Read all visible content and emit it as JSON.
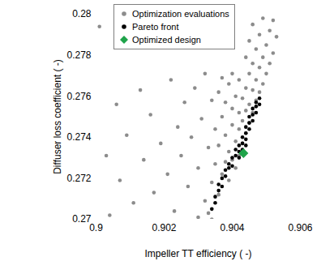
{
  "chart_data": {
    "type": "scatter",
    "xlabel": "Impeller TT efficiency ( -)",
    "ylabel": "Diffuser loss coefficient ( -)",
    "xlim": [
      0.9,
      0.906
    ],
    "xticks": [
      0.9,
      0.902,
      0.904,
      0.906
    ],
    "ylim": [
      0.27,
      0.28
    ],
    "yticks": [
      0.27,
      0.272,
      0.274,
      0.276,
      0.278,
      0.28
    ],
    "grid": false,
    "legend": "top-left",
    "series": [
      {
        "name": "Optimization evaluations",
        "color": "#8c8c8c",
        "marker": "circle",
        "x": [
          0.9001,
          0.9003,
          0.9004,
          0.9006,
          0.9007,
          0.9009,
          0.9011,
          0.9013,
          0.9014,
          0.9016,
          0.9017,
          0.9019,
          0.9021,
          0.9022,
          0.9023,
          0.9024,
          0.9025,
          0.9026,
          0.9027,
          0.9028,
          0.9029,
          0.903,
          0.9031,
          0.9032,
          0.9032,
          0.9033,
          0.9034,
          0.903,
          0.9033,
          0.9034,
          0.9034,
          0.9035,
          0.9035,
          0.9036,
          0.9036,
          0.9036,
          0.9037,
          0.9037,
          0.9037,
          0.9038,
          0.9038,
          0.9038,
          0.9039,
          0.9039,
          0.9039,
          0.904,
          0.904,
          0.904,
          0.904,
          0.9041,
          0.9041,
          0.9041,
          0.9042,
          0.9042,
          0.9042,
          0.9042,
          0.9043,
          0.9043,
          0.9043,
          0.9044,
          0.9044,
          0.9044,
          0.9044,
          0.9045,
          0.9045,
          0.9045,
          0.9045,
          0.9046,
          0.9046,
          0.9046,
          0.9046,
          0.9047,
          0.9047,
          0.9047,
          0.9048,
          0.9048,
          0.9048,
          0.9049,
          0.9049,
          0.9049,
          0.905,
          0.905,
          0.9051,
          0.9051,
          0.9052,
          0.9052,
          0.9053
        ],
        "y": [
          0.2794,
          0.2731,
          0.2702,
          0.2756,
          0.2719,
          0.2741,
          0.2708,
          0.2763,
          0.2729,
          0.2751,
          0.2713,
          0.2737,
          0.2722,
          0.2768,
          0.2704,
          0.2745,
          0.2731,
          0.2757,
          0.2716,
          0.274,
          0.2764,
          0.2725,
          0.2749,
          0.2709,
          0.2771,
          0.2735,
          0.2758,
          0.2701,
          0.2703,
          0.27,
          0.2718,
          0.2727,
          0.2744,
          0.2712,
          0.2736,
          0.2762,
          0.2722,
          0.275,
          0.2769,
          0.2728,
          0.2741,
          0.2757,
          0.2719,
          0.2733,
          0.2766,
          0.2729,
          0.2746,
          0.2754,
          0.2771,
          0.2725,
          0.2738,
          0.276,
          0.2731,
          0.2744,
          0.2752,
          0.2768,
          0.2737,
          0.2748,
          0.2759,
          0.2742,
          0.2753,
          0.2764,
          0.2779,
          0.2747,
          0.2756,
          0.2771,
          0.2787,
          0.2752,
          0.2763,
          0.2776,
          0.2795,
          0.2758,
          0.2768,
          0.2783,
          0.2762,
          0.2774,
          0.279,
          0.2766,
          0.2779,
          0.2798,
          0.2771,
          0.2785,
          0.2776,
          0.2792,
          0.2781,
          0.2797,
          0.2789
        ]
      },
      {
        "name": "Pareto front",
        "color": "#000000",
        "marker": "circle",
        "x": [
          0.9034,
          0.9035,
          0.9035,
          0.9036,
          0.9036,
          0.9037,
          0.9037,
          0.9038,
          0.9038,
          0.9039,
          0.9039,
          0.904,
          0.904,
          0.9041,
          0.9041,
          0.9042,
          0.9042,
          0.9043,
          0.9043,
          0.9044,
          0.9044,
          0.9044,
          0.9045,
          0.9045,
          0.9045,
          0.9046,
          0.9046,
          0.9046,
          0.9047,
          0.9047,
          0.9047,
          0.9048,
          0.9048,
          0.9043,
          0.9044,
          0.9042
        ],
        "y": [
          0.2705,
          0.2708,
          0.2711,
          0.2714,
          0.2717,
          0.2716,
          0.272,
          0.2721,
          0.2724,
          0.2725,
          0.2727,
          0.2726,
          0.273,
          0.2731,
          0.2734,
          0.2733,
          0.2736,
          0.2737,
          0.274,
          0.2739,
          0.2742,
          0.2745,
          0.2744,
          0.2747,
          0.275,
          0.2748,
          0.2751,
          0.2754,
          0.2752,
          0.2755,
          0.2757,
          0.2756,
          0.2759,
          0.2734,
          0.2736,
          0.273
        ]
      },
      {
        "name": "Optimized design",
        "color": "#1fa34a",
        "marker": "diamond",
        "x": [
          0.90433
        ],
        "y": [
          0.27322
        ]
      }
    ]
  }
}
